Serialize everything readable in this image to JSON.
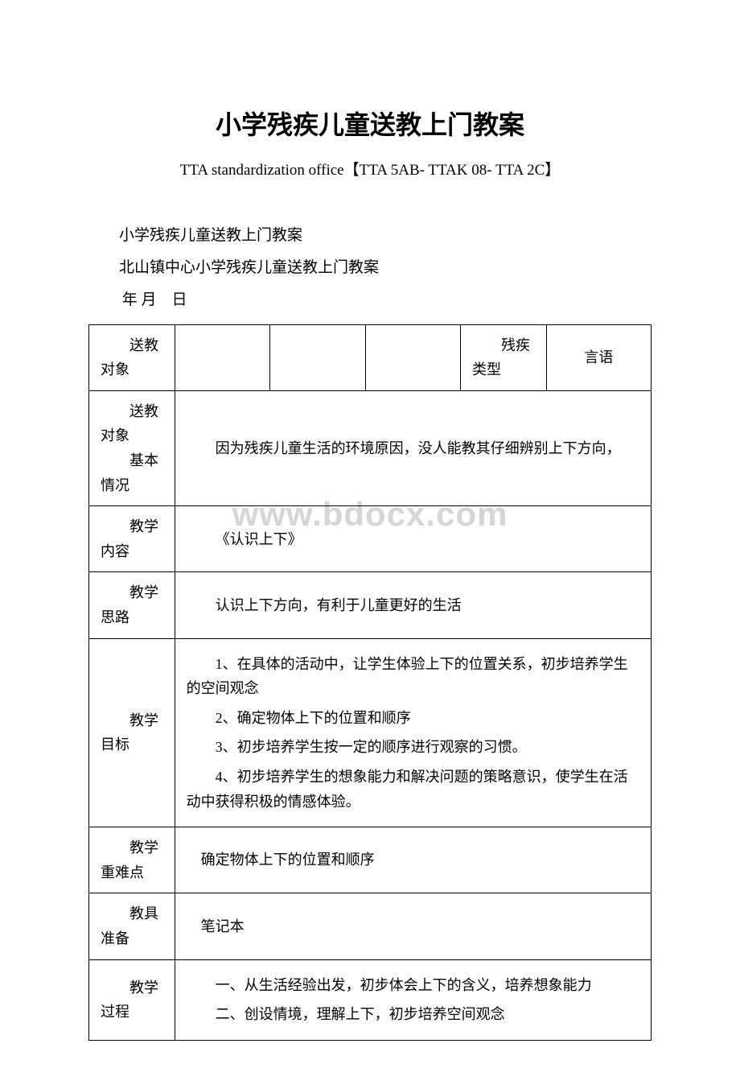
{
  "title": "小学残疾儿童送教上门教案",
  "subtitle": "TTA standardization office【TTA 5AB- TTAK 08- TTA 2C】",
  "heading1": "小学残疾儿童送教上门教案",
  "heading2": "北山镇中心小学残疾儿童送教上门教案",
  "date_line": "年  月　日",
  "watermark": "www.bdocx.com",
  "table": {
    "row1": {
      "label1": "送教对象",
      "col2": "",
      "col3": "",
      "col4": "",
      "label2": "残疾类型",
      "value": "言语"
    },
    "row2": {
      "label": "送教对象",
      "label2": "基本情况",
      "content": "因为残疾儿童生活的环境原因，没人能教其仔细辨别上下方向，"
    },
    "row3": {
      "label": "教学内容",
      "content": "《认识上下》"
    },
    "row4": {
      "label": "教学思路",
      "content": "认识上下方向，有利于儿童更好的生活"
    },
    "row5": {
      "label": "教学目标",
      "items": [
        "1、在具体的活动中，让学生体验上下的位置关系，初步培养学生的空间观念",
        "2、确定物体上下的位置和顺序",
        "3、初步培养学生按一定的顺序进行观察的习惯。",
        "4、初步培养学生的想象能力和解决问题的策略意识，使学生在活动中获得积极的情感体验。"
      ]
    },
    "row6": {
      "label": "教学重难点",
      "content": "确定物体上下的位置和顺序"
    },
    "row7": {
      "label": "教具准备",
      "content": "笔记本"
    },
    "row8": {
      "label": "教学过程",
      "items": [
        "一、从生活经验出发，初步体会上下的含义，培养想象能力",
        "二、创设情境，理解上下，初步培养空间观念"
      ]
    }
  }
}
